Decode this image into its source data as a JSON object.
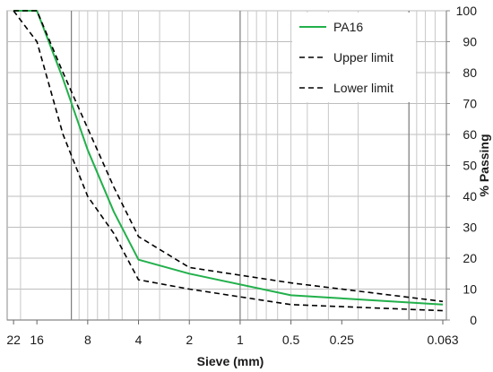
{
  "chart_data": {
    "type": "line",
    "xlabel": "Sieve (mm)",
    "ylabel": "% Passing",
    "x_scale": "log",
    "x_reversed": true,
    "xlim": [
      0.06,
      24
    ],
    "ylim": [
      0,
      100
    ],
    "x_ticks": [
      22,
      16,
      8,
      4,
      2,
      1,
      0.5,
      0.25,
      0.063
    ],
    "x_tick_labels": [
      "22",
      "16",
      "8",
      "4",
      "2",
      "1",
      "0.5",
      "0.25",
      "0.063"
    ],
    "y_ticks": [
      0,
      10,
      20,
      30,
      40,
      50,
      60,
      70,
      80,
      90,
      100
    ],
    "y_tick_labels": [
      "0",
      "10",
      "20",
      "30",
      "40",
      "50",
      "60",
      "70",
      "80",
      "90",
      "100"
    ],
    "grid": true,
    "legend_position": "top-right",
    "series": [
      {
        "name": "PA16",
        "color": "#22b04b",
        "dash": "solid",
        "x": [
          22,
          16,
          11.2,
          8,
          5.6,
          4,
          2,
          0.5,
          0.063
        ],
        "y": [
          100,
          100,
          78,
          55,
          35,
          19.5,
          15,
          8,
          5
        ]
      },
      {
        "name": "Upper limit",
        "color": "#000000",
        "dash": "dashed",
        "x": [
          22,
          16,
          11.2,
          8,
          5.6,
          4,
          2,
          0.5,
          0.063
        ],
        "y": [
          100,
          100,
          80,
          62,
          43,
          27,
          17,
          12,
          6
        ]
      },
      {
        "name": "Lower limit",
        "color": "#000000",
        "dash": "dashed",
        "x": [
          22,
          16,
          11.2,
          8,
          5.6,
          4,
          2,
          0.5,
          0.063
        ],
        "y": [
          100,
          90,
          60,
          40,
          28,
          13,
          10,
          5,
          3
        ]
      }
    ]
  }
}
